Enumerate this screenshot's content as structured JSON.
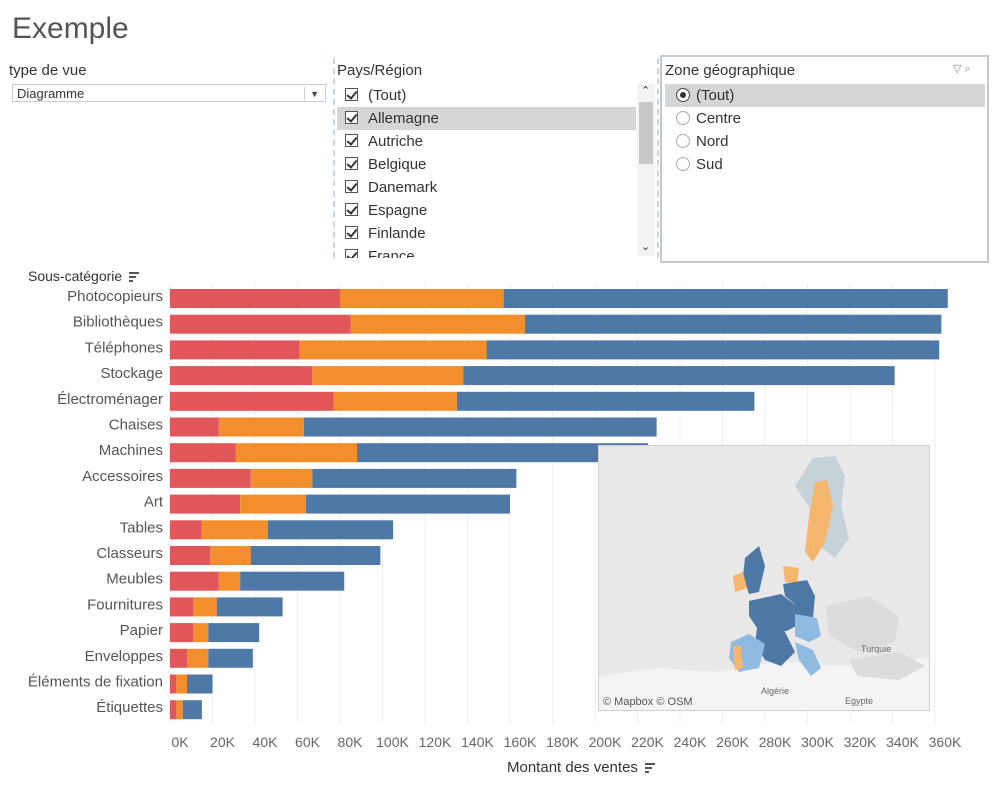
{
  "page_title": "Exemple",
  "view_type": {
    "title": "type de vue",
    "selected": "Diagramme"
  },
  "country_filter": {
    "title": "Pays/Région",
    "items": [
      {
        "label": "(Tout)",
        "checked": true,
        "highlighted": false
      },
      {
        "label": "Allemagne",
        "checked": true,
        "highlighted": true
      },
      {
        "label": "Autriche",
        "checked": true,
        "highlighted": false
      },
      {
        "label": "Belgique",
        "checked": true,
        "highlighted": false
      },
      {
        "label": "Danemark",
        "checked": true,
        "highlighted": false
      },
      {
        "label": "Espagne",
        "checked": true,
        "highlighted": false
      },
      {
        "label": "Finlande",
        "checked": true,
        "highlighted": false
      },
      {
        "label": "France",
        "checked": true,
        "highlighted": false
      }
    ]
  },
  "zone_filter": {
    "title": "Zone géographique",
    "items": [
      {
        "label": "(Tout)",
        "selected": true
      },
      {
        "label": "Centre",
        "selected": false
      },
      {
        "label": "Nord",
        "selected": false
      },
      {
        "label": "Sud",
        "selected": false
      }
    ]
  },
  "map": {
    "credit": "© Mapbox © OSM",
    "labels": [
      "Turquie",
      "Algérie",
      "Egypte"
    ]
  },
  "chart_data": {
    "type": "bar",
    "orientation": "horizontal",
    "stacked": true,
    "ylabel": "Sous-catégorie",
    "xlabel": "Montant des ventes",
    "xlim": [
      0,
      360000
    ],
    "x_ticks": [
      "0K",
      "20K",
      "40K",
      "60K",
      "80K",
      "100K",
      "120K",
      "140K",
      "160K",
      "180K",
      "200K",
      "220K",
      "240K",
      "260K",
      "280K",
      "300K",
      "320K",
      "340K",
      "360K"
    ],
    "categories": [
      "Photocopieurs",
      "Bibliothèques",
      "Téléphones",
      "Stockage",
      "Électroménager",
      "Chaises",
      "Machines",
      "Accessoires",
      "Art",
      "Tables",
      "Classeurs",
      "Meubles",
      "Fournitures",
      "Papier",
      "Enveloppes",
      "Éléments de fixation",
      "Étiquettes"
    ],
    "series": [
      {
        "color": "#e15759",
        "values": [
          80000,
          85000,
          61000,
          67000,
          77000,
          23000,
          31000,
          38000,
          33000,
          15000,
          19000,
          23000,
          11000,
          11000,
          8000,
          3000,
          3000
        ]
      },
      {
        "color": "#f28e2b",
        "values": [
          77000,
          82000,
          88000,
          71000,
          58000,
          40000,
          57000,
          29000,
          31000,
          31000,
          19000,
          10000,
          11000,
          7000,
          10000,
          5000,
          3000
        ]
      },
      {
        "color": "#4e79a7",
        "values": [
          209000,
          196000,
          213000,
          203000,
          140000,
          166000,
          137000,
          96000,
          96000,
          59000,
          61000,
          49000,
          31000,
          24000,
          21000,
          12000,
          9000
        ]
      }
    ]
  }
}
